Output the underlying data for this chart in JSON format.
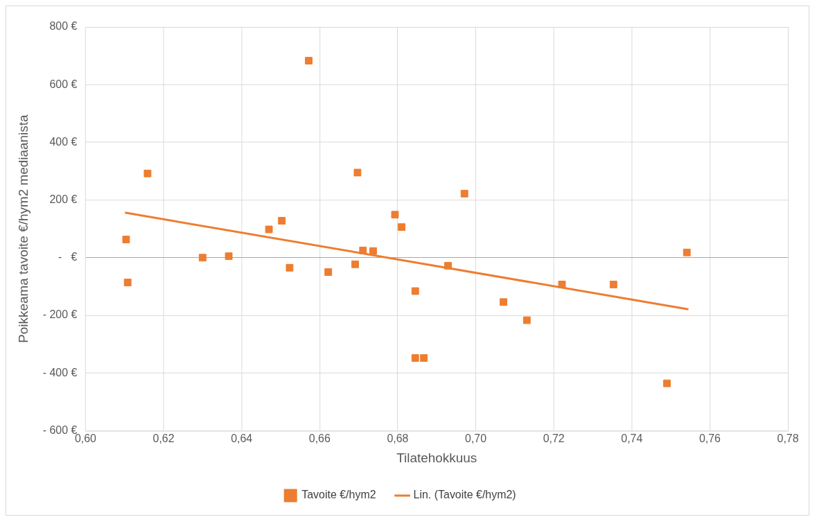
{
  "chart_data": {
    "type": "scatter",
    "xlabel": "Tilatehokkuus",
    "ylabel": "Poikkeama tavoite €/hym2 mediaanista",
    "xlim": [
      0.6,
      0.78
    ],
    "xticks": [
      {
        "value": 0.6,
        "label": "0,60"
      },
      {
        "value": 0.62,
        "label": "0,62"
      },
      {
        "value": 0.64,
        "label": "0,64"
      },
      {
        "value": 0.66,
        "label": "0,66"
      },
      {
        "value": 0.68,
        "label": "0,68"
      },
      {
        "value": 0.7,
        "label": "0,70"
      },
      {
        "value": 0.72,
        "label": "0,72"
      },
      {
        "value": 0.74,
        "label": "0,74"
      },
      {
        "value": 0.76,
        "label": "0,76"
      },
      {
        "value": 0.78,
        "label": "0,78"
      }
    ],
    "ylim": [
      -600,
      800
    ],
    "yticks": [
      {
        "value": -600,
        "label": "- 600 €"
      },
      {
        "value": -400,
        "label": "- 400 €"
      },
      {
        "value": -200,
        "label": "- 200 €"
      },
      {
        "value": 0,
        "label": "-   €"
      },
      {
        "value": 200,
        "label": "200 €"
      },
      {
        "value": 400,
        "label": "400 €"
      },
      {
        "value": 600,
        "label": "600 €"
      },
      {
        "value": 800,
        "label": "800 €"
      }
    ],
    "grid": true,
    "legend": "bottom",
    "series": [
      {
        "name": "Tavoite €/hym2",
        "type": "scatter",
        "marker": "square",
        "color": "#ed7d31",
        "x": [
          0.6104,
          0.6108,
          0.6159,
          0.63,
          0.6367,
          0.647,
          0.6503,
          0.6523,
          0.6572,
          0.6622,
          0.6691,
          0.6697,
          0.6711,
          0.6737,
          0.6793,
          0.681,
          0.6845,
          0.6845,
          0.6867,
          0.6929,
          0.6971,
          0.7071,
          0.7131,
          0.7221,
          0.7353,
          0.749,
          0.7541
        ],
        "values": [
          63,
          -86,
          292,
          0,
          5,
          98,
          128,
          -35,
          683,
          -50,
          -23,
          295,
          25,
          23,
          149,
          106,
          -116,
          -348,
          -348,
          -28,
          222,
          -154,
          -217,
          -93,
          -93,
          -436,
          18
        ]
      },
      {
        "name": "Lin. (Tavoite €/hym2)",
        "type": "line",
        "marker": "none",
        "color": "#ed7d31",
        "x": [
          0.6101,
          0.7545
        ],
        "values": [
          156,
          -179
        ]
      }
    ]
  }
}
